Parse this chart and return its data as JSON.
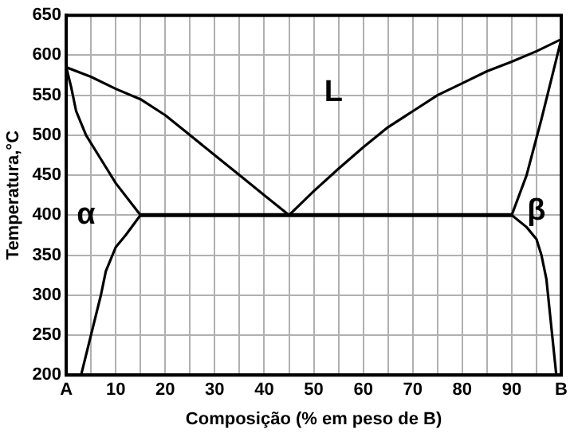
{
  "chart_data": {
    "type": "line",
    "xlabel": "Composição (% em peso de B)",
    "ylabel": "Temperatura,°C",
    "xlim": [
      0,
      100
    ],
    "ylim": [
      200,
      650
    ],
    "xticks": [
      {
        "value": 0,
        "label": "A"
      },
      {
        "value": 5,
        "label": null
      },
      10,
      {
        "value": 15,
        "label": null
      },
      20,
      {
        "value": 25,
        "label": null
      },
      30,
      {
        "value": 35,
        "label": null
      },
      40,
      {
        "value": 45,
        "label": null
      },
      50,
      {
        "value": 55,
        "label": null
      },
      60,
      {
        "value": 65,
        "label": null
      },
      70,
      {
        "value": 75,
        "label": null
      },
      80,
      {
        "value": 85,
        "label": null
      },
      90,
      {
        "value": 95,
        "label": null
      },
      {
        "value": 100,
        "label": "B"
      }
    ],
    "yticks": [
      200,
      250,
      300,
      350,
      400,
      450,
      500,
      550,
      600,
      650
    ],
    "grid": true,
    "legend": false,
    "marker": "none",
    "line_style": "solid",
    "series": [
      {
        "color": "#000000",
        "x": [
          0,
          5,
          10,
          15,
          20,
          25,
          30,
          35,
          40,
          45
        ],
        "values": [
          585,
          573,
          558,
          545,
          525,
          500,
          475,
          450,
          425,
          400
        ]
      },
      {
        "color": "#000000",
        "x": [
          45,
          50,
          55,
          60,
          65,
          70,
          75,
          80,
          85,
          90,
          95,
          100
        ],
        "values": [
          400,
          430,
          458,
          485,
          510,
          530,
          550,
          565,
          580,
          592,
          605,
          620
        ]
      },
      {
        "color": "#000000",
        "x": [
          0,
          1,
          2,
          4,
          7,
          10,
          15
        ],
        "values": [
          585,
          560,
          530,
          500,
          470,
          440,
          400
        ]
      },
      {
        "color": "#000000",
        "x": [
          15,
          12,
          10,
          8,
          7,
          5,
          3
        ],
        "values": [
          400,
          375,
          360,
          330,
          300,
          250,
          200
        ]
      },
      {
        "color": "#000000",
        "x": [
          15,
          90
        ],
        "values": [
          400,
          400
        ]
      },
      {
        "color": "#000000",
        "x": [
          90,
          93,
          96,
          98,
          100
        ],
        "values": [
          400,
          450,
          520,
          570,
          620
        ]
      },
      {
        "color": "#000000",
        "x": [
          90,
          93,
          95,
          96,
          97,
          98,
          99
        ],
        "values": [
          400,
          385,
          370,
          350,
          320,
          260,
          200
        ]
      }
    ],
    "annotations": [
      "α",
      "L",
      "β"
    ]
  }
}
